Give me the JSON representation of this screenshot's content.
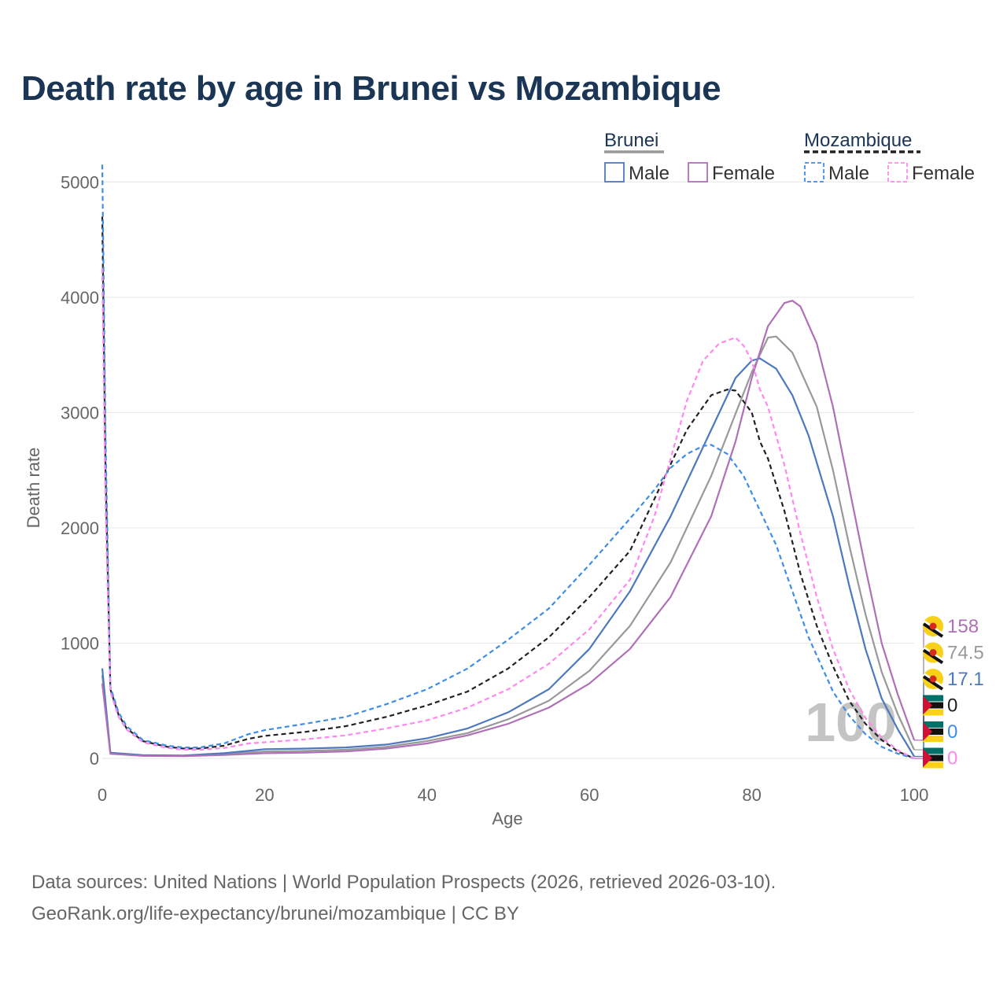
{
  "title": "Death rate by age in Brunei vs Mozambique",
  "legend": {
    "groups": [
      {
        "name": "Brunei",
        "color": "#999999",
        "dash": false,
        "items": [
          {
            "label": "Male",
            "color": "#4c78c0"
          },
          {
            "label": "Female",
            "color": "#b070b8"
          }
        ]
      },
      {
        "name": "Mozambique",
        "color": "#222222",
        "dash": true,
        "items": [
          {
            "label": "Male",
            "color": "#3d8ee8"
          },
          {
            "label": "Female",
            "color": "#ff88ee"
          }
        ]
      }
    ]
  },
  "chart_data": {
    "type": "line",
    "title": "Death rate by age in Brunei vs Mozambique",
    "xlabel": "Age",
    "ylabel": "Death rate",
    "xlim": [
      0,
      100
    ],
    "ylim": [
      0,
      5200
    ],
    "xticks": [
      0,
      20,
      40,
      60,
      80,
      100
    ],
    "yticks": [
      0,
      1000,
      2000,
      3000,
      4000,
      5000
    ],
    "grid": true,
    "watermark": "100",
    "series": [
      {
        "name": "Brunei Total",
        "color": "#999999",
        "dash": false,
        "end_label": "74.5",
        "flag": "brunei",
        "points": [
          [
            0,
            720
          ],
          [
            1,
            45
          ],
          [
            5,
            25
          ],
          [
            10,
            22
          ],
          [
            15,
            38
          ],
          [
            20,
            60
          ],
          [
            25,
            65
          ],
          [
            30,
            75
          ],
          [
            35,
            100
          ],
          [
            40,
            150
          ],
          [
            45,
            220
          ],
          [
            50,
            340
          ],
          [
            55,
            500
          ],
          [
            60,
            760
          ],
          [
            65,
            1150
          ],
          [
            70,
            1700
          ],
          [
            75,
            2450
          ],
          [
            80,
            3350
          ],
          [
            82,
            3650
          ],
          [
            83,
            3660
          ],
          [
            85,
            3520
          ],
          [
            88,
            3050
          ],
          [
            90,
            2500
          ],
          [
            92,
            1850
          ],
          [
            94,
            1250
          ],
          [
            96,
            750
          ],
          [
            98,
            380
          ],
          [
            100,
            74.5
          ]
        ]
      },
      {
        "name": "Brunei Male",
        "color": "#4c78c0",
        "dash": false,
        "end_label": "17.1",
        "flag": "brunei",
        "points": [
          [
            0,
            780
          ],
          [
            1,
            50
          ],
          [
            5,
            28
          ],
          [
            10,
            25
          ],
          [
            15,
            45
          ],
          [
            20,
            80
          ],
          [
            25,
            85
          ],
          [
            30,
            95
          ],
          [
            35,
            120
          ],
          [
            40,
            175
          ],
          [
            45,
            260
          ],
          [
            50,
            400
          ],
          [
            55,
            600
          ],
          [
            60,
            950
          ],
          [
            65,
            1450
          ],
          [
            70,
            2100
          ],
          [
            75,
            2850
          ],
          [
            78,
            3300
          ],
          [
            80,
            3450
          ],
          [
            81,
            3470
          ],
          [
            83,
            3380
          ],
          [
            85,
            3150
          ],
          [
            87,
            2800
          ],
          [
            90,
            2100
          ],
          [
            92,
            1500
          ],
          [
            94,
            950
          ],
          [
            96,
            520
          ],
          [
            98,
            250
          ],
          [
            100,
            17.1
          ]
        ]
      },
      {
        "name": "Brunei Female",
        "color": "#b070b8",
        "dash": false,
        "end_label": "158",
        "flag": "brunei",
        "points": [
          [
            0,
            650
          ],
          [
            1,
            40
          ],
          [
            5,
            22
          ],
          [
            10,
            20
          ],
          [
            15,
            30
          ],
          [
            20,
            45
          ],
          [
            25,
            50
          ],
          [
            30,
            60
          ],
          [
            35,
            85
          ],
          [
            40,
            130
          ],
          [
            45,
            200
          ],
          [
            50,
            300
          ],
          [
            55,
            440
          ],
          [
            60,
            650
          ],
          [
            65,
            950
          ],
          [
            70,
            1400
          ],
          [
            75,
            2100
          ],
          [
            78,
            2750
          ],
          [
            80,
            3300
          ],
          [
            82,
            3750
          ],
          [
            84,
            3950
          ],
          [
            85,
            3970
          ],
          [
            86,
            3920
          ],
          [
            88,
            3600
          ],
          [
            90,
            3050
          ],
          [
            92,
            2350
          ],
          [
            94,
            1650
          ],
          [
            96,
            1000
          ],
          [
            98,
            550
          ],
          [
            100,
            158
          ]
        ]
      },
      {
        "name": "Mozambique Total",
        "color": "#222222",
        "dash": true,
        "end_label": "0",
        "flag": "mozambique",
        "points": [
          [
            0,
            4700
          ],
          [
            0.4,
            2500
          ],
          [
            1,
            600
          ],
          [
            2,
            380
          ],
          [
            3,
            260
          ],
          [
            5,
            150
          ],
          [
            8,
            100
          ],
          [
            10,
            85
          ],
          [
            12,
            85
          ],
          [
            15,
            110
          ],
          [
            18,
            170
          ],
          [
            20,
            195
          ],
          [
            25,
            230
          ],
          [
            30,
            280
          ],
          [
            35,
            360
          ],
          [
            40,
            460
          ],
          [
            45,
            580
          ],
          [
            50,
            780
          ],
          [
            55,
            1050
          ],
          [
            60,
            1400
          ],
          [
            65,
            1800
          ],
          [
            68,
            2250
          ],
          [
            70,
            2550
          ],
          [
            72,
            2850
          ],
          [
            75,
            3150
          ],
          [
            77,
            3200
          ],
          [
            78,
            3190
          ],
          [
            80,
            3000
          ],
          [
            81,
            2750
          ],
          [
            82,
            2600
          ],
          [
            84,
            2150
          ],
          [
            86,
            1600
          ],
          [
            88,
            1150
          ],
          [
            90,
            800
          ],
          [
            92,
            500
          ],
          [
            94,
            300
          ],
          [
            96,
            160
          ],
          [
            98,
            60
          ],
          [
            100,
            0
          ]
        ]
      },
      {
        "name": "Mozambique Male",
        "color": "#3d8ee8",
        "dash": true,
        "end_label": "0",
        "flag": "mozambique",
        "points": [
          [
            0,
            5150
          ],
          [
            0.4,
            2800
          ],
          [
            1,
            620
          ],
          [
            2,
            400
          ],
          [
            3,
            280
          ],
          [
            5,
            160
          ],
          [
            8,
            110
          ],
          [
            10,
            95
          ],
          [
            12,
            95
          ],
          [
            15,
            130
          ],
          [
            18,
            210
          ],
          [
            20,
            245
          ],
          [
            25,
            300
          ],
          [
            30,
            360
          ],
          [
            35,
            470
          ],
          [
            40,
            600
          ],
          [
            45,
            780
          ],
          [
            50,
            1030
          ],
          [
            55,
            1300
          ],
          [
            60,
            1680
          ],
          [
            65,
            2080
          ],
          [
            68,
            2330
          ],
          [
            70,
            2520
          ],
          [
            72,
            2640
          ],
          [
            74,
            2710
          ],
          [
            75,
            2720
          ],
          [
            77,
            2640
          ],
          [
            79,
            2450
          ],
          [
            80,
            2300
          ],
          [
            81,
            2150
          ],
          [
            83,
            1850
          ],
          [
            85,
            1450
          ],
          [
            87,
            1050
          ],
          [
            90,
            580
          ],
          [
            92,
            370
          ],
          [
            94,
            210
          ],
          [
            96,
            100
          ],
          [
            98,
            40
          ],
          [
            100,
            0
          ]
        ]
      },
      {
        "name": "Mozambique Female",
        "color": "#ff88ee",
        "dash": true,
        "end_label": "0",
        "flag": "mozambique",
        "points": [
          [
            0,
            4250
          ],
          [
            0.4,
            2200
          ],
          [
            1,
            580
          ],
          [
            2,
            360
          ],
          [
            3,
            250
          ],
          [
            5,
            140
          ],
          [
            8,
            90
          ],
          [
            10,
            75
          ],
          [
            12,
            75
          ],
          [
            15,
            90
          ],
          [
            18,
            130
          ],
          [
            20,
            140
          ],
          [
            25,
            165
          ],
          [
            30,
            200
          ],
          [
            35,
            260
          ],
          [
            40,
            330
          ],
          [
            45,
            440
          ],
          [
            50,
            600
          ],
          [
            55,
            820
          ],
          [
            60,
            1120
          ],
          [
            65,
            1550
          ],
          [
            68,
            2100
          ],
          [
            70,
            2600
          ],
          [
            72,
            3100
          ],
          [
            74,
            3450
          ],
          [
            76,
            3600
          ],
          [
            78,
            3650
          ],
          [
            79,
            3580
          ],
          [
            80,
            3450
          ],
          [
            81,
            3200
          ],
          [
            82,
            3050
          ],
          [
            84,
            2550
          ],
          [
            86,
            1950
          ],
          [
            88,
            1400
          ],
          [
            90,
            950
          ],
          [
            92,
            600
          ],
          [
            94,
            350
          ],
          [
            96,
            180
          ],
          [
            98,
            70
          ],
          [
            100,
            0
          ]
        ]
      }
    ]
  },
  "source": {
    "line1": "Data sources: United Nations | World Population Prospects (2026, retrieved 2026-03-10).",
    "line2": "GeoRank.org/life-expectancy/brunei/mozambique | CC BY"
  }
}
